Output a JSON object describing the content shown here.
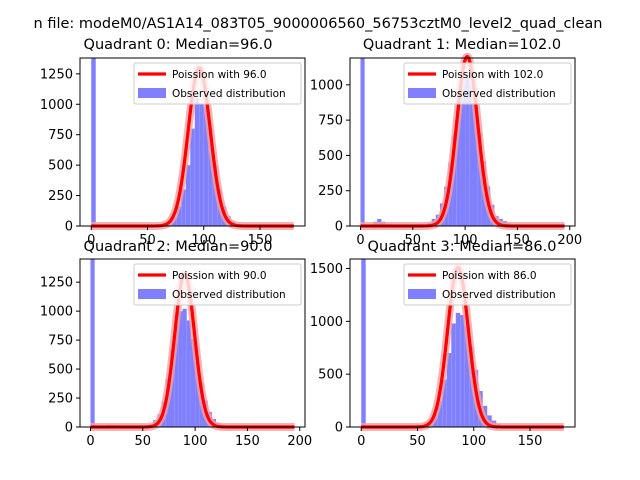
{
  "suptitle": "n file: modeM0/AS1A14_083T05_9000006560_56753cztM0_level2_quad_clean",
  "colors": {
    "hist": "#8080ff",
    "fit": "#ff0000",
    "fit_glow": "#f4a0a0",
    "axes": "#000000",
    "background": "#ffffff"
  },
  "chart_data": [
    {
      "type": "bar",
      "title": "Quadrant 0: Median=96.0",
      "median": 96.0,
      "xlim": [
        -10,
        190
      ],
      "ylim": [
        0,
        1380
      ],
      "xticks": [
        0,
        50,
        100,
        150
      ],
      "yticks": [
        0,
        250,
        500,
        750,
        1000,
        1250
      ],
      "legend_position": "top-right",
      "legend": [
        "Poission with 96.0",
        "Observed distribution"
      ],
      "bin_width": 4,
      "bins": [
        [
          0,
          1380
        ],
        [
          60,
          8
        ],
        [
          64,
          20
        ],
        [
          68,
          40
        ],
        [
          72,
          70
        ],
        [
          76,
          160
        ],
        [
          80,
          300
        ],
        [
          84,
          500
        ],
        [
          88,
          800
        ],
        [
          92,
          1050
        ],
        [
          96,
          1000
        ],
        [
          100,
          980
        ],
        [
          104,
          800
        ],
        [
          108,
          500
        ],
        [
          112,
          300
        ],
        [
          116,
          160
        ],
        [
          120,
          80
        ],
        [
          124,
          40
        ],
        [
          128,
          20
        ],
        [
          132,
          10
        ]
      ],
      "fit": {
        "name": "Poission with 96.0",
        "mean": 96.0,
        "peak": 1300,
        "x_range": [
          0,
          180
        ]
      }
    },
    {
      "type": "bar",
      "title": "Quadrant 1: Median=102.0",
      "median": 102.0,
      "xlim": [
        -10,
        205
      ],
      "ylim": [
        0,
        1190
      ],
      "xticks": [
        0,
        50,
        100,
        150,
        200
      ],
      "yticks": [
        0,
        250,
        500,
        750,
        1000
      ],
      "legend_position": "top-right",
      "legend": [
        "Poission with 102.0",
        "Observed distribution"
      ],
      "bin_width": 4,
      "bins": [
        [
          0,
          1190
        ],
        [
          12,
          30
        ],
        [
          16,
          50
        ],
        [
          20,
          30
        ],
        [
          24,
          15
        ],
        [
          40,
          10
        ],
        [
          48,
          10
        ],
        [
          56,
          15
        ],
        [
          64,
          25
        ],
        [
          68,
          50
        ],
        [
          72,
          80
        ],
        [
          76,
          160
        ],
        [
          80,
          280
        ],
        [
          84,
          450
        ],
        [
          88,
          650
        ],
        [
          92,
          860
        ],
        [
          96,
          1000
        ],
        [
          100,
          1080
        ],
        [
          104,
          1010
        ],
        [
          108,
          860
        ],
        [
          112,
          660
        ],
        [
          116,
          460
        ],
        [
          120,
          280
        ],
        [
          124,
          150
        ],
        [
          128,
          70
        ],
        [
          132,
          50
        ],
        [
          136,
          35
        ],
        [
          140,
          20
        ],
        [
          144,
          10
        ]
      ],
      "fit": {
        "name": "Poission with 102.0",
        "mean": 102.0,
        "peak": 1200,
        "x_range": [
          0,
          195
        ]
      }
    },
    {
      "type": "bar",
      "title": "Quadrant 2: Median=90.0",
      "median": 90.0,
      "xlim": [
        -10,
        205
      ],
      "ylim": [
        0,
        1450
      ],
      "xticks": [
        0,
        50,
        100,
        150,
        200
      ],
      "yticks": [
        0,
        250,
        500,
        750,
        1000,
        1250
      ],
      "legend_position": "top-right",
      "legend": [
        "Poission with 90.0",
        "Observed distribution"
      ],
      "bin_width": 4,
      "bins": [
        [
          0,
          1450
        ],
        [
          12,
          10
        ],
        [
          16,
          20
        ],
        [
          20,
          15
        ],
        [
          28,
          8
        ],
        [
          40,
          8
        ],
        [
          48,
          10
        ],
        [
          52,
          15
        ],
        [
          56,
          25
        ],
        [
          60,
          60
        ],
        [
          64,
          110
        ],
        [
          68,
          220
        ],
        [
          72,
          420
        ],
        [
          76,
          660
        ],
        [
          80,
          880
        ],
        [
          84,
          1000
        ],
        [
          88,
          1020
        ],
        [
          92,
          920
        ],
        [
          96,
          760
        ],
        [
          100,
          560
        ],
        [
          104,
          380
        ],
        [
          108,
          230
        ],
        [
          112,
          130
        ],
        [
          116,
          70
        ],
        [
          120,
          35
        ],
        [
          124,
          20
        ],
        [
          128,
          10
        ]
      ],
      "fit": {
        "name": "Poission with 90.0",
        "mean": 90.0,
        "peak": 1320,
        "x_range": [
          0,
          195
        ]
      }
    },
    {
      "type": "bar",
      "title": "Quadrant 3: Median=86.0",
      "median": 86.0,
      "xlim": [
        -10,
        190
      ],
      "ylim": [
        0,
        1590
      ],
      "xticks": [
        0,
        50,
        100,
        150
      ],
      "yticks": [
        0,
        500,
        1000,
        1500
      ],
      "legend_position": "top-right",
      "legend": [
        "Poission with 86.0",
        "Observed distribution"
      ],
      "bin_width": 4,
      "bins": [
        [
          0,
          1590
        ],
        [
          44,
          8
        ],
        [
          52,
          15
        ],
        [
          56,
          30
        ],
        [
          60,
          60
        ],
        [
          64,
          130
        ],
        [
          68,
          250
        ],
        [
          72,
          450
        ],
        [
          76,
          700
        ],
        [
          80,
          980
        ],
        [
          84,
          1080
        ],
        [
          88,
          1060
        ],
        [
          92,
          960
        ],
        [
          96,
          760
        ],
        [
          100,
          540
        ],
        [
          104,
          340
        ],
        [
          108,
          200
        ],
        [
          112,
          110
        ],
        [
          116,
          60
        ],
        [
          120,
          30
        ],
        [
          124,
          15
        ],
        [
          128,
          10
        ]
      ],
      "fit": {
        "name": "Poission with 86.0",
        "mean": 86.0,
        "peak": 1510,
        "x_range": [
          0,
          180
        ]
      }
    }
  ]
}
